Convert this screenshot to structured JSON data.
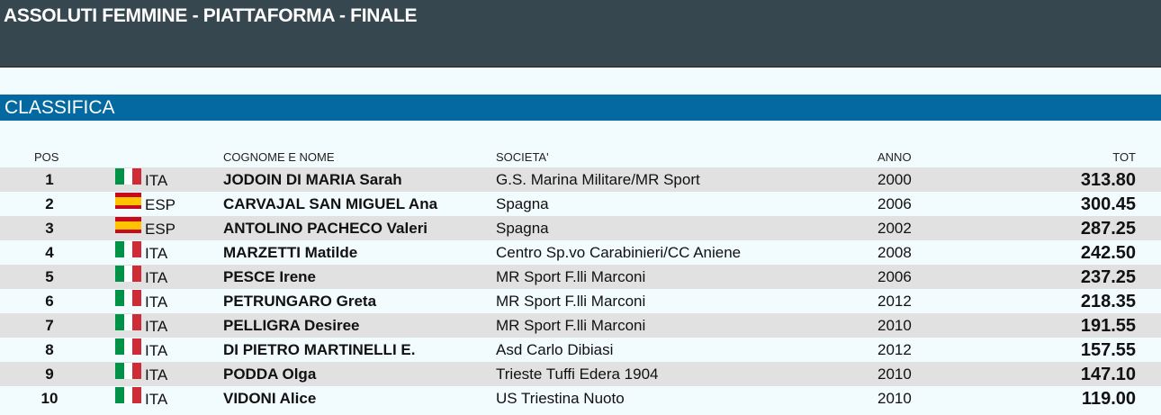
{
  "header": {
    "title": "ASSOLUTI FEMMINE - PIATTAFORMA - FINALE"
  },
  "section": {
    "title": "CLASSIFICA"
  },
  "table": {
    "columns": {
      "pos": "POS",
      "name": "COGNOME E NOME",
      "club": "SOCIETA'",
      "year": "ANNO",
      "total": "TOT"
    },
    "rows": [
      {
        "pos": 1,
        "flag": {
          "layout": "vertical",
          "colors": [
            "#009246",
            "#ffffff",
            "#ce2b37"
          ]
        },
        "country": "ITA",
        "name": "JODOIN DI MARIA Sarah",
        "club": "G.S. Marina Militare/MR Sport",
        "year": 2000,
        "total": "313.80"
      },
      {
        "pos": 2,
        "flag": {
          "layout": "horizontal",
          "colors": [
            "#c60b1e",
            "#ffc400",
            "#ffc400",
            "#c60b1e"
          ]
        },
        "country": "ESP",
        "name": "CARVAJAL SAN MIGUEL Ana",
        "club": "Spagna",
        "year": 2006,
        "total": "300.45"
      },
      {
        "pos": 3,
        "flag": {
          "layout": "horizontal",
          "colors": [
            "#c60b1e",
            "#ffc400",
            "#ffc400",
            "#c60b1e"
          ]
        },
        "country": "ESP",
        "name": "ANTOLINO PACHECO Valeri",
        "club": "Spagna",
        "year": 2002,
        "total": "287.25"
      },
      {
        "pos": 4,
        "flag": {
          "layout": "vertical",
          "colors": [
            "#009246",
            "#ffffff",
            "#ce2b37"
          ]
        },
        "country": "ITA",
        "name": "MARZETTI Matilde",
        "club": "Centro Sp.vo Carabinieri/CC Aniene",
        "year": 2008,
        "total": "242.50"
      },
      {
        "pos": 5,
        "flag": {
          "layout": "vertical",
          "colors": [
            "#009246",
            "#ffffff",
            "#ce2b37"
          ]
        },
        "country": "ITA",
        "name": "PESCE Irene",
        "club": "MR Sport F.lli Marconi",
        "year": 2006,
        "total": "237.25"
      },
      {
        "pos": 6,
        "flag": {
          "layout": "vertical",
          "colors": [
            "#009246",
            "#ffffff",
            "#ce2b37"
          ]
        },
        "country": "ITA",
        "name": "PETRUNGARO Greta",
        "club": "MR Sport F.lli Marconi",
        "year": 2012,
        "total": "218.35"
      },
      {
        "pos": 7,
        "flag": {
          "layout": "vertical",
          "colors": [
            "#009246",
            "#ffffff",
            "#ce2b37"
          ]
        },
        "country": "ITA",
        "name": "PELLIGRA Desiree",
        "club": "MR Sport F.lli Marconi",
        "year": 2010,
        "total": "191.55"
      },
      {
        "pos": 8,
        "flag": {
          "layout": "vertical",
          "colors": [
            "#009246",
            "#ffffff",
            "#ce2b37"
          ]
        },
        "country": "ITA",
        "name": "DI PIETRO MARTINELLI E.",
        "club": "Asd Carlo Dibiasi",
        "year": 2012,
        "total": "157.55"
      },
      {
        "pos": 9,
        "flag": {
          "layout": "vertical",
          "colors": [
            "#009246",
            "#ffffff",
            "#ce2b37"
          ]
        },
        "country": "ITA",
        "name": "PODDA Olga",
        "club": "Trieste Tuffi Edera 1904",
        "year": 2010,
        "total": "147.10"
      },
      {
        "pos": 10,
        "flag": {
          "layout": "vertical",
          "colors": [
            "#009246",
            "#ffffff",
            "#ce2b37"
          ]
        },
        "country": "ITA",
        "name": "VIDONI Alice",
        "club": "US Triestina Nuoto",
        "year": 2010,
        "total": "119.00"
      }
    ]
  }
}
